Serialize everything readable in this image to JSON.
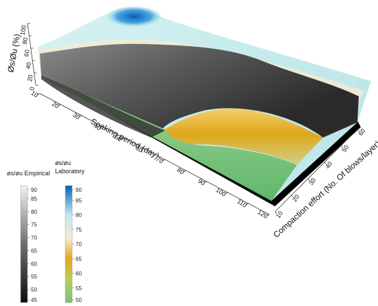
{
  "chart_data": {
    "type": "surface3d",
    "title": "",
    "axes": {
      "x": {
        "label": "Soaking period (day)",
        "ticks": [
          "10",
          "20",
          "30",
          "40",
          "50",
          "60",
          "70",
          "80",
          "90",
          "100",
          "110",
          "120"
        ],
        "range": [
          10,
          120
        ]
      },
      "y": {
        "label": "Compaction effort (No. Of blows/layer)",
        "ticks": [
          "10",
          "20",
          "30",
          "40",
          "50",
          "60"
        ],
        "range": [
          10,
          60
        ]
      },
      "z": {
        "label": "Øs/Øu (%)",
        "ticks": [
          "0",
          "20",
          "40",
          "60",
          "80",
          "100"
        ],
        "range": [
          0,
          100
        ]
      }
    },
    "series": [
      {
        "name": "øs/øu Empirical",
        "colormap": "grayscale",
        "range": [
          45,
          90
        ]
      },
      {
        "name": "øs/øu Laboratory",
        "colormap": "green-yellow-white-cyan-blue",
        "range": [
          50,
          90
        ]
      }
    ],
    "colorbars": [
      {
        "title_lines": [
          "øs/øu Empirical"
        ],
        "ticks": [
          "90",
          "85",
          "80",
          "75",
          "70",
          "65",
          "60",
          "55",
          "50",
          "45"
        ],
        "range": [
          45,
          90
        ]
      },
      {
        "title_lines": [
          "øs/øu",
          "Laboratory"
        ],
        "ticks": [
          "90",
          "85",
          "80",
          "75",
          "70",
          "65",
          "60",
          "55",
          "50"
        ],
        "range": [
          50,
          90
        ]
      }
    ],
    "colors": {
      "lab_low": "#7cc37a",
      "lab_mid": "#e6a91c",
      "lab_cream": "#f4ecd0",
      "lab_cyan": "#bfeaf0",
      "lab_high": "#0a5fb6",
      "emp_low": "#0c0c0c",
      "emp_high": "#f2f2f2"
    }
  }
}
